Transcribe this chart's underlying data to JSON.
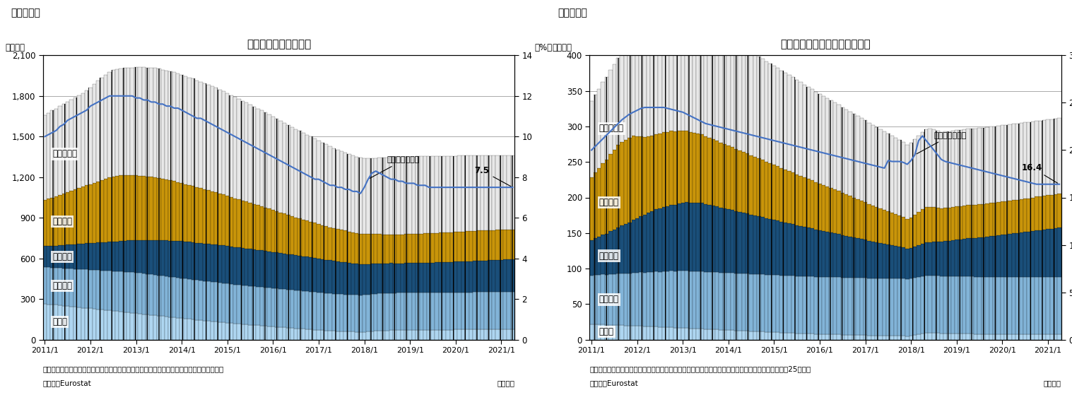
{
  "chart1": {
    "title": "失業率と国別失業者数",
    "fig_label": "（図表１）",
    "ylabel_left": "（万人）",
    "ylabel_right": "（%）",
    "ylim_left": [
      0,
      2100
    ],
    "ylim_right": [
      0,
      14
    ],
    "yticks_left": [
      0,
      300,
      600,
      900,
      1200,
      1500,
      1800,
      2100
    ],
    "yticks_right": [
      0,
      2,
      4,
      6,
      8,
      10,
      12,
      14
    ],
    "line_label": "失業率（右軸）",
    "line_annotation": "7.5",
    "note1": "（注）季節調整値、その他の国はドイツ・フランス・イタリア・スペインを除くユーロ圏。",
    "note2": "（資料）Eurostat",
    "note3": "（月次）"
  },
  "chart2": {
    "title": "若年失業率と国別若年失業者数",
    "fig_label": "（図表２）",
    "ylabel_left": "（万人）",
    "ylabel_right": "（%）",
    "ylim_left": [
      0,
      400
    ],
    "ylim_right": [
      0,
      30
    ],
    "yticks_left": [
      0,
      50,
      100,
      150,
      200,
      250,
      300,
      350,
      400
    ],
    "yticks_right": [
      0,
      5,
      10,
      15,
      20,
      25,
      30
    ],
    "line_label": "失業率（右軸）",
    "line_annotation": "16.4",
    "note1": "（注）季節調整値、その他の国はドイツ・フランス・イタリア・スペインを除くユーロ圏。若年者は25才未満",
    "note2": "（資料）Eurostat",
    "note3": "（月次）"
  },
  "labels": {
    "doitsu": "ドイツ",
    "furansu": "フランス",
    "italia": "イタリア",
    "supein": "スペイン",
    "sonota": "その他の国"
  },
  "colors": {
    "doitsu": "#aed6f1",
    "furansu": "#85c1e9",
    "italia": "#1a5276",
    "supein": "#ca8a04",
    "sonota_fill": "#ffffff",
    "line": "#2e75b6",
    "bar_edge": "#000000"
  },
  "x_ticklabels": [
    "2011/1",
    "2012/1",
    "2013/1",
    "2014/1",
    "2015/1",
    "2016/1",
    "2017/1",
    "2018/1",
    "2019/1",
    "2020/1",
    "2021/1"
  ],
  "chart1_data": {
    "doitsu": [
      265,
      262,
      260,
      257,
      254,
      251,
      248,
      245,
      242,
      239,
      236,
      234,
      231,
      228,
      225,
      222,
      219,
      216,
      213,
      210,
      207,
      204,
      201,
      198,
      195,
      192,
      189,
      186,
      183,
      180,
      177,
      174,
      171,
      168,
      165,
      162,
      159,
      156,
      153,
      150,
      147,
      144,
      141,
      138,
      136,
      133,
      130,
      128,
      125,
      122,
      120,
      118,
      115,
      113,
      110,
      108,
      106,
      103,
      101,
      99,
      97,
      95,
      92,
      90,
      88,
      86,
      84,
      82,
      80,
      78,
      76,
      74,
      72,
      70,
      68,
      66,
      64,
      63,
      62,
      61,
      60,
      59,
      58,
      57,
      58,
      60,
      63,
      65,
      67,
      68,
      69,
      70,
      70,
      71,
      71,
      72,
      72,
      72,
      73,
      73,
      73,
      73,
      73,
      74,
      74,
      74,
      74,
      74,
      75,
      75,
      75,
      75,
      75,
      76,
      76,
      76,
      76,
      76,
      76,
      77,
      77,
      77,
      77,
      77
    ],
    "furansu": [
      270,
      272,
      273,
      274,
      276,
      277,
      278,
      280,
      281,
      282,
      284,
      285,
      286,
      288,
      289,
      290,
      292,
      293,
      294,
      296,
      297,
      298,
      300,
      300,
      300,
      300,
      300,
      299,
      299,
      298,
      298,
      297,
      297,
      296,
      296,
      295,
      295,
      294,
      294,
      293,
      293,
      292,
      292,
      292,
      291,
      291,
      290,
      290,
      289,
      289,
      288,
      288,
      287,
      287,
      286,
      286,
      285,
      285,
      284,
      284,
      283,
      283,
      282,
      282,
      281,
      281,
      280,
      280,
      279,
      279,
      278,
      278,
      277,
      277,
      276,
      276,
      275,
      275,
      274,
      274,
      273,
      273,
      272,
      272,
      272,
      272,
      273,
      273,
      274,
      274,
      274,
      275,
      275,
      275,
      275,
      275,
      275,
      275,
      275,
      275,
      275,
      275,
      275,
      275,
      275,
      275,
      275,
      275,
      275,
      275,
      275,
      275,
      275,
      275,
      275,
      275,
      275,
      275,
      275,
      275,
      275,
      275,
      275,
      275
    ],
    "italia": [
      155,
      158,
      161,
      164,
      168,
      171,
      175,
      178,
      182,
      185,
      189,
      192,
      196,
      199,
      203,
      206,
      210,
      213,
      217,
      220,
      224,
      227,
      231,
      234,
      238,
      241,
      245,
      248,
      252,
      255,
      258,
      261,
      264,
      267,
      270,
      272,
      273,
      274,
      275,
      276,
      276,
      277,
      277,
      278,
      278,
      278,
      278,
      278,
      277,
      277,
      276,
      276,
      275,
      274,
      274,
      273,
      272,
      271,
      270,
      269,
      268,
      266,
      265,
      264,
      262,
      261,
      259,
      258,
      256,
      255,
      253,
      251,
      249,
      247,
      246,
      244,
      242,
      240,
      238,
      236,
      234,
      232,
      230,
      228,
      226,
      225,
      224,
      223,
      222,
      221,
      220,
      220,
      219,
      218,
      218,
      218,
      218,
      218,
      218,
      218,
      218,
      219,
      220,
      221,
      222,
      223,
      224,
      225,
      226,
      227,
      228,
      229,
      230,
      231,
      232,
      233,
      234,
      235,
      236,
      237,
      238,
      239,
      240,
      241
    ],
    "supein": [
      340,
      348,
      356,
      364,
      372,
      380,
      388,
      396,
      404,
      412,
      420,
      428,
      436,
      444,
      452,
      460,
      468,
      476,
      482,
      484,
      484,
      484,
      484,
      482,
      480,
      478,
      475,
      472,
      469,
      465,
      460,
      455,
      450,
      445,
      440,
      435,
      430,
      425,
      420,
      415,
      410,
      405,
      400,
      395,
      390,
      385,
      380,
      375,
      370,
      365,
      360,
      355,
      350,
      345,
      340,
      335,
      330,
      325,
      320,
      315,
      310,
      305,
      300,
      295,
      290,
      285,
      280,
      276,
      272,
      268,
      264,
      260,
      256,
      252,
      248,
      244,
      240,
      238,
      236,
      234,
      232,
      230,
      228,
      226,
      224,
      222,
      220,
      218,
      216,
      215,
      214,
      213,
      213,
      213,
      213,
      214,
      215,
      216,
      217,
      217,
      218,
      218,
      218,
      219,
      219,
      220,
      220,
      220,
      220,
      221,
      221,
      221,
      221,
      221,
      222,
      222,
      222,
      222,
      222,
      222,
      222,
      222,
      222,
      222
    ],
    "sonota": [
      630,
      636,
      642,
      648,
      654,
      660,
      666,
      672,
      678,
      684,
      690,
      700,
      714,
      728,
      742,
      756,
      768,
      778,
      784,
      788,
      790,
      792,
      794,
      796,
      798,
      800,
      802,
      804,
      806,
      808,
      808,
      807,
      806,
      805,
      803,
      801,
      799,
      797,
      795,
      793,
      790,
      787,
      784,
      780,
      776,
      772,
      767,
      762,
      757,
      752,
      747,
      742,
      737,
      731,
      726,
      720,
      714,
      708,
      702,
      696,
      690,
      683,
      677,
      671,
      665,
      658,
      652,
      646,
      640,
      634,
      628,
      622,
      616,
      610,
      604,
      598,
      592,
      586,
      580,
      576,
      572,
      568,
      564,
      560,
      558,
      558,
      560,
      563,
      566,
      568,
      570,
      572,
      573,
      573,
      573,
      572,
      572,
      571,
      570,
      570,
      569,
      568,
      567,
      566,
      565,
      564,
      563,
      562,
      561,
      560,
      559,
      558,
      557,
      556,
      555,
      554,
      553,
      552,
      551,
      550,
      549,
      548,
      547,
      546
    ],
    "rate": [
      10.0,
      10.1,
      10.2,
      10.3,
      10.5,
      10.6,
      10.8,
      10.9,
      11.0,
      11.1,
      11.2,
      11.3,
      11.5,
      11.6,
      11.7,
      11.8,
      11.9,
      12.0,
      12.0,
      12.0,
      12.0,
      12.0,
      12.0,
      12.0,
      11.9,
      11.9,
      11.8,
      11.8,
      11.7,
      11.7,
      11.6,
      11.6,
      11.5,
      11.5,
      11.4,
      11.4,
      11.3,
      11.2,
      11.1,
      11.0,
      10.9,
      10.9,
      10.8,
      10.7,
      10.6,
      10.5,
      10.4,
      10.3,
      10.2,
      10.1,
      10.0,
      9.9,
      9.8,
      9.7,
      9.6,
      9.5,
      9.4,
      9.3,
      9.2,
      9.1,
      9.0,
      8.9,
      8.8,
      8.7,
      8.6,
      8.5,
      8.4,
      8.3,
      8.2,
      8.1,
      8.0,
      7.9,
      7.9,
      7.8,
      7.7,
      7.6,
      7.6,
      7.5,
      7.5,
      7.4,
      7.4,
      7.3,
      7.3,
      7.2,
      7.5,
      7.9,
      8.2,
      8.3,
      8.2,
      8.1,
      8.0,
      7.9,
      7.9,
      7.8,
      7.8,
      7.7,
      7.7,
      7.7,
      7.6,
      7.6,
      7.6,
      7.5,
      7.5,
      7.5,
      7.5,
      7.5,
      7.5,
      7.5,
      7.5,
      7.5,
      7.5,
      7.5,
      7.5,
      7.5,
      7.5,
      7.5,
      7.5,
      7.5,
      7.5,
      7.5,
      7.5,
      7.5,
      7.5,
      7.5
    ]
  },
  "chart2_data": {
    "doitsu": [
      22,
      22,
      22,
      22,
      21,
      21,
      21,
      21,
      21,
      20,
      20,
      20,
      20,
      20,
      19,
      19,
      19,
      19,
      18,
      18,
      18,
      18,
      17,
      17,
      17,
      17,
      16,
      16,
      16,
      16,
      15,
      15,
      15,
      15,
      14,
      14,
      14,
      14,
      13,
      13,
      13,
      13,
      12,
      12,
      12,
      12,
      11,
      11,
      11,
      11,
      10,
      10,
      10,
      10,
      9,
      9,
      9,
      9,
      9,
      8,
      8,
      8,
      8,
      8,
      8,
      8,
      7,
      7,
      7,
      7,
      7,
      7,
      7,
      6,
      6,
      6,
      6,
      6,
      6,
      6,
      6,
      6,
      6,
      5,
      6,
      7,
      8,
      9,
      10,
      10,
      10,
      10,
      9,
      9,
      9,
      9,
      9,
      9,
      9,
      9,
      9,
      8,
      8,
      8,
      8,
      8,
      8,
      8,
      8,
      8,
      8,
      8,
      8,
      8,
      8,
      8,
      8,
      8,
      8,
      8,
      8,
      8,
      8,
      8
    ],
    "furansu": [
      68,
      69,
      69,
      70,
      70,
      71,
      71,
      72,
      72,
      73,
      73,
      74,
      74,
      75,
      75,
      76,
      76,
      77,
      77,
      78,
      78,
      79,
      79,
      80,
      80,
      80,
      80,
      80,
      80,
      80,
      80,
      80,
      80,
      80,
      80,
      80,
      80,
      80,
      80,
      80,
      80,
      80,
      80,
      80,
      80,
      80,
      80,
      80,
      80,
      80,
      80,
      80,
      80,
      80,
      80,
      80,
      80,
      80,
      80,
      80,
      80,
      80,
      80,
      80,
      80,
      80,
      80,
      80,
      80,
      80,
      80,
      80,
      80,
      80,
      80,
      80,
      80,
      80,
      80,
      80,
      80,
      80,
      80,
      80,
      80,
      80,
      80,
      80,
      80,
      80,
      80,
      80,
      80,
      80,
      80,
      80,
      80,
      80,
      80,
      80,
      80,
      80,
      80,
      80,
      80,
      80,
      80,
      80,
      80,
      80,
      80,
      80,
      80,
      80,
      80,
      80,
      80,
      80,
      80,
      80,
      80,
      80,
      80,
      80
    ],
    "italia": [
      50,
      52,
      54,
      56,
      58,
      61,
      63,
      65,
      68,
      70,
      72,
      75,
      77,
      79,
      82,
      84,
      86,
      88,
      90,
      91,
      92,
      93,
      94,
      95,
      96,
      97,
      97,
      97,
      97,
      97,
      96,
      95,
      94,
      93,
      92,
      91,
      90,
      89,
      88,
      87,
      86,
      85,
      84,
      83,
      82,
      81,
      80,
      79,
      78,
      77,
      76,
      75,
      74,
      73,
      72,
      71,
      70,
      69,
      68,
      67,
      66,
      65,
      64,
      63,
      62,
      61,
      60,
      59,
      58,
      57,
      56,
      55,
      54,
      53,
      52,
      51,
      50,
      49,
      48,
      47,
      46,
      45,
      44,
      43,
      43,
      44,
      45,
      46,
      47,
      47,
      48,
      48,
      49,
      50,
      50,
      51,
      52,
      52,
      53,
      54,
      54,
      55,
      56,
      56,
      57,
      58,
      58,
      59,
      60,
      60,
      61,
      62,
      62,
      63,
      64,
      64,
      65,
      66,
      66,
      67,
      68,
      68,
      69,
      70
    ],
    "supein": [
      88,
      92,
      96,
      100,
      104,
      108,
      112,
      116,
      117,
      118,
      119,
      118,
      115,
      112,
      109,
      107,
      106,
      105,
      105,
      105,
      104,
      104,
      103,
      102,
      101,
      100,
      99,
      98,
      97,
      96,
      95,
      94,
      93,
      92,
      91,
      90,
      89,
      88,
      87,
      86,
      85,
      84,
      83,
      82,
      81,
      80,
      79,
      78,
      77,
      76,
      75,
      74,
      73,
      72,
      71,
      70,
      69,
      68,
      67,
      66,
      65,
      64,
      63,
      62,
      61,
      60,
      59,
      58,
      57,
      56,
      55,
      54,
      53,
      52,
      51,
      50,
      49,
      48,
      47,
      46,
      45,
      44,
      43,
      42,
      43,
      45,
      47,
      49,
      50,
      50,
      49,
      48,
      47,
      47,
      47,
      47,
      47,
      47,
      47,
      47,
      47,
      47,
      47,
      47,
      47,
      47,
      47,
      47,
      47,
      47,
      47,
      47,
      47,
      47,
      47,
      47,
      47,
      47,
      47,
      47,
      47,
      47,
      47,
      47
    ],
    "sonota": [
      108,
      110,
      112,
      114,
      116,
      118,
      120,
      122,
      124,
      126,
      128,
      130,
      132,
      134,
      136,
      138,
      140,
      142,
      144,
      146,
      148,
      150,
      152,
      154,
      156,
      157,
      158,
      158,
      158,
      158,
      157,
      156,
      155,
      154,
      153,
      152,
      151,
      150,
      149,
      148,
      147,
      146,
      145,
      144,
      143,
      142,
      141,
      140,
      139,
      138,
      137,
      136,
      135,
      134,
      133,
      132,
      131,
      130,
      129,
      128,
      127,
      126,
      125,
      124,
      123,
      122,
      121,
      120,
      119,
      118,
      117,
      116,
      115,
      114,
      113,
      112,
      111,
      110,
      109,
      108,
      107,
      106,
      105,
      104,
      105,
      106,
      107,
      108,
      109,
      110,
      109,
      108,
      107,
      107,
      107,
      107,
      107,
      107,
      107,
      107,
      107,
      107,
      107,
      107,
      107,
      107,
      107,
      107,
      107,
      107,
      107,
      107,
      107,
      107,
      107,
      107,
      107,
      107,
      107,
      107,
      107,
      107,
      107,
      107
    ],
    "rate": [
      20.0,
      20.4,
      20.8,
      21.2,
      21.6,
      22.0,
      22.4,
      22.8,
      23.2,
      23.5,
      23.8,
      24.0,
      24.2,
      24.4,
      24.5,
      24.5,
      24.5,
      24.5,
      24.5,
      24.5,
      24.4,
      24.3,
      24.2,
      24.1,
      24.0,
      23.8,
      23.6,
      23.4,
      23.2,
      23.0,
      22.8,
      22.7,
      22.6,
      22.5,
      22.4,
      22.3,
      22.2,
      22.1,
      22.0,
      21.9,
      21.8,
      21.7,
      21.6,
      21.5,
      21.4,
      21.3,
      21.2,
      21.1,
      21.0,
      20.9,
      20.8,
      20.7,
      20.6,
      20.5,
      20.4,
      20.3,
      20.2,
      20.1,
      20.0,
      19.9,
      19.8,
      19.7,
      19.6,
      19.5,
      19.4,
      19.3,
      19.2,
      19.1,
      19.0,
      18.9,
      18.8,
      18.7,
      18.6,
      18.5,
      18.4,
      18.3,
      18.2,
      18.1,
      18.9,
      18.8,
      18.8,
      18.8,
      18.7,
      18.5,
      18.9,
      19.5,
      21.0,
      21.5,
      21.0,
      20.5,
      20.0,
      19.5,
      19.0,
      18.8,
      18.7,
      18.6,
      18.5,
      18.4,
      18.3,
      18.2,
      18.1,
      18.0,
      17.9,
      17.8,
      17.7,
      17.6,
      17.5,
      17.4,
      17.3,
      17.2,
      17.1,
      17.0,
      16.9,
      16.8,
      16.7,
      16.6,
      16.5,
      16.4,
      16.4,
      16.4,
      16.4,
      16.4,
      16.4,
      16.4
    ]
  }
}
